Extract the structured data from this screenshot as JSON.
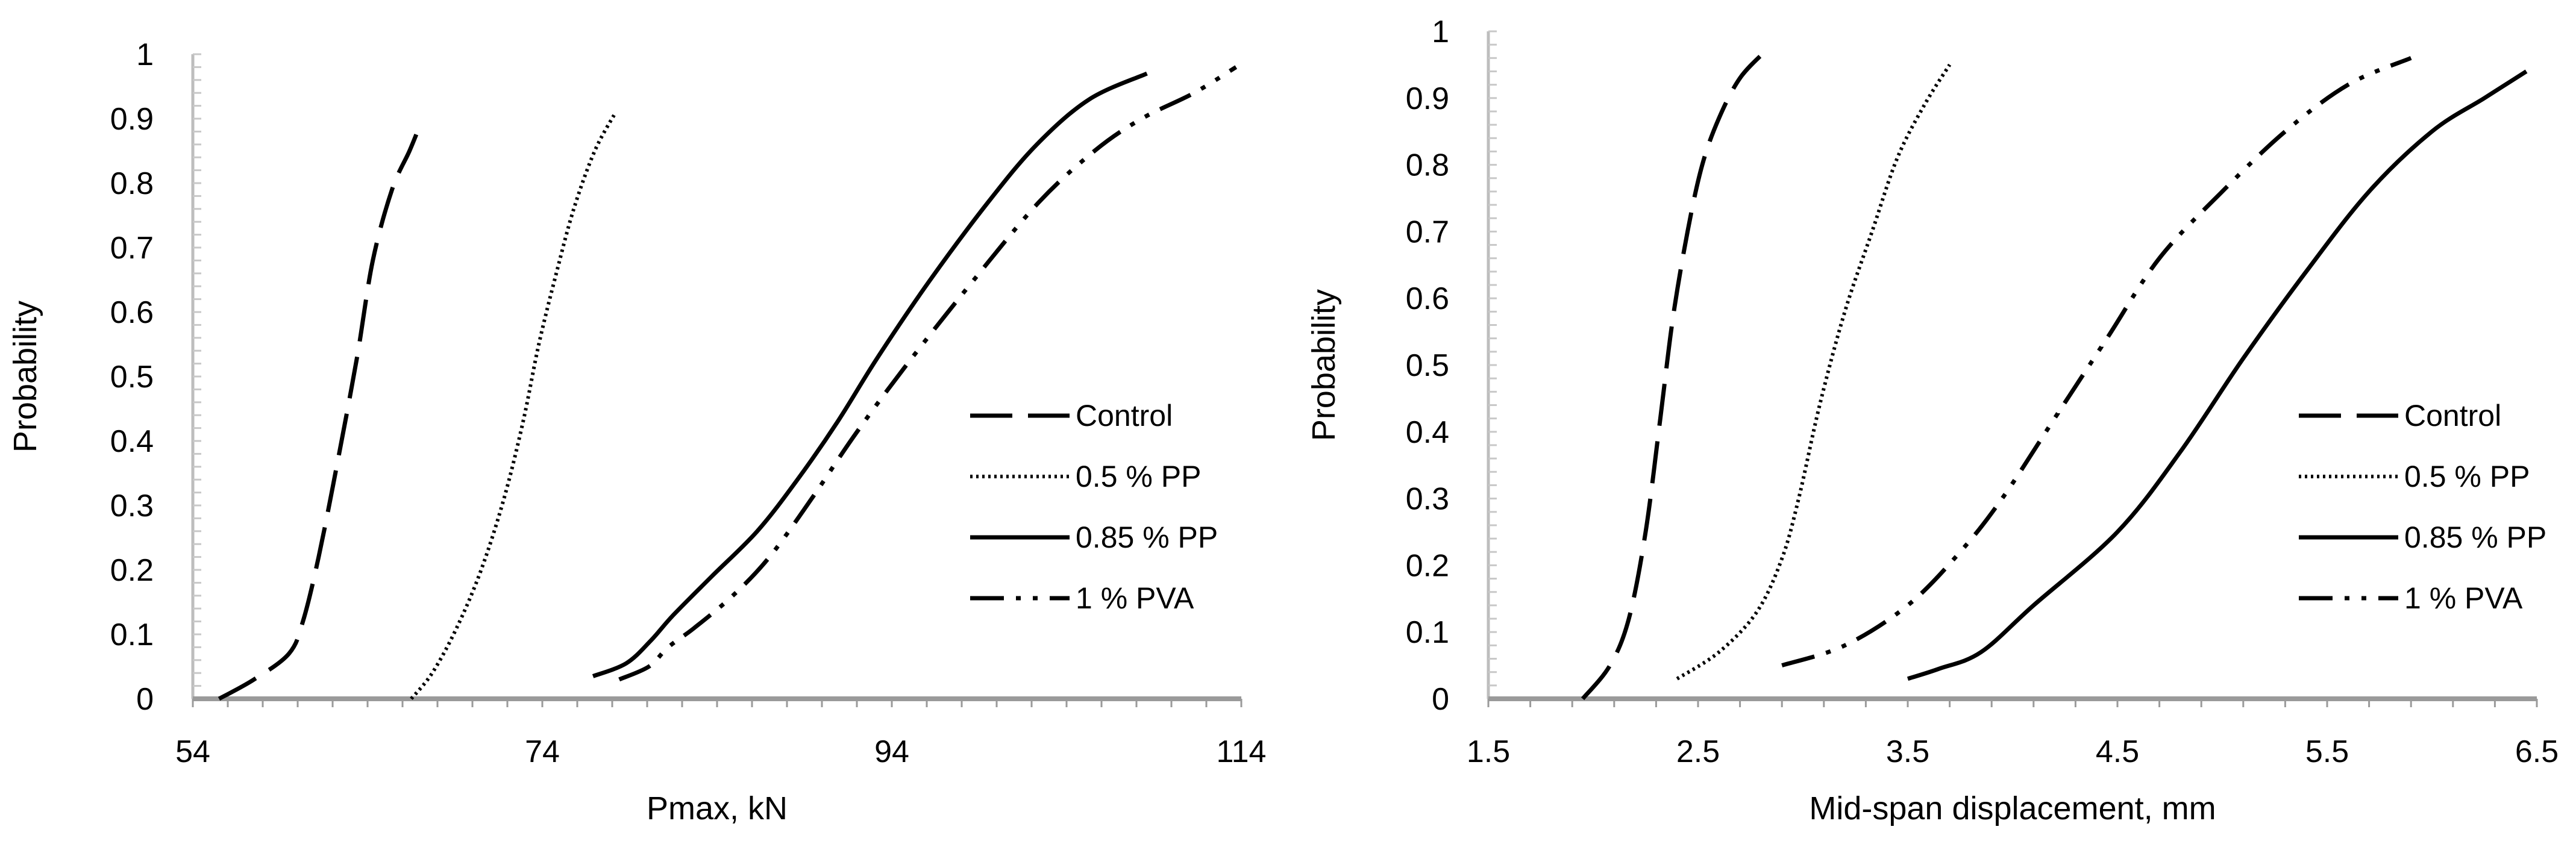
{
  "chart_data": [
    {
      "type": "line",
      "xlabel": "Pmax, kN",
      "ylabel": "Probability",
      "xlim": [
        54,
        114
      ],
      "ylim": [
        0,
        1
      ],
      "x_ticks": [
        "54",
        "74",
        "94",
        "114"
      ],
      "y_ticks": [
        "0",
        "0.1",
        "0.2",
        "0.3",
        "0.4",
        "0.5",
        "0.6",
        "0.7",
        "0.8",
        "0.9",
        "1"
      ],
      "grid": false,
      "legend_position": "right",
      "series": [
        {
          "name": "Control",
          "style": "long-dash",
          "x": [
            55.5,
            57.5,
            59.5,
            60.3,
            61.2,
            62.3,
            63.4,
            64.3,
            65.4,
            66.4,
            67.0
          ],
          "y": [
            0.0,
            0.03,
            0.07,
            0.12,
            0.22,
            0.37,
            0.53,
            0.68,
            0.79,
            0.85,
            0.89
          ]
        },
        {
          "name": "0.5 % PP",
          "style": "dotted",
          "x": [
            66.5,
            67.7,
            69.1,
            70.5,
            71.8,
            72.9,
            73.8,
            74.8,
            75.8,
            77.0,
            78.2
          ],
          "y": [
            0.0,
            0.04,
            0.11,
            0.2,
            0.31,
            0.43,
            0.55,
            0.66,
            0.76,
            0.85,
            0.91
          ]
        },
        {
          "name": "0.85 % PP",
          "style": "solid",
          "x": [
            76.9,
            78.8,
            80.2,
            81.5,
            83.7,
            86.3,
            88.6,
            90.9,
            93.2,
            96.2,
            99.5,
            102.3,
            105.3,
            108.6
          ],
          "y": [
            0.035,
            0.055,
            0.09,
            0.13,
            0.19,
            0.26,
            0.34,
            0.43,
            0.53,
            0.65,
            0.77,
            0.86,
            0.93,
            0.97
          ]
        },
        {
          "name": "1 % PVA",
          "style": "dash-dot-dot",
          "x": [
            78.4,
            80.1,
            81.2,
            82.7,
            84.9,
            87.0,
            89.4,
            91.9,
            94.9,
            98.7,
            102.4,
            105.6,
            108.3,
            111.3,
            113.7
          ],
          "y": [
            0.03,
            0.05,
            0.08,
            0.11,
            0.16,
            0.22,
            0.31,
            0.41,
            0.52,
            0.65,
            0.77,
            0.85,
            0.9,
            0.94,
            0.98
          ]
        }
      ],
      "legend_entries": [
        "Control",
        "0.5 % PP",
        "0.85 % PP",
        "1 % PVA"
      ]
    },
    {
      "type": "line",
      "xlabel": "Mid-span displacement, mm",
      "ylabel": "Probability",
      "xlim": [
        1.5,
        6.5
      ],
      "ylim": [
        0,
        1
      ],
      "x_ticks": [
        "1.5",
        "2.5",
        "3.5",
        "4.5",
        "5.5",
        "6.5"
      ],
      "y_ticks": [
        "0",
        "0.1",
        "0.2",
        "0.3",
        "0.4",
        "0.5",
        "0.6",
        "0.7",
        "0.8",
        "0.9",
        "1"
      ],
      "grid": false,
      "legend_position": "right",
      "series": [
        {
          "name": "Control",
          "style": "long-dash",
          "x": [
            1.95,
            2.08,
            2.17,
            2.25,
            2.32,
            2.38,
            2.45,
            2.52,
            2.6,
            2.7,
            2.82
          ],
          "y": [
            0.0,
            0.05,
            0.12,
            0.25,
            0.42,
            0.57,
            0.7,
            0.8,
            0.87,
            0.93,
            0.97
          ]
        },
        {
          "name": "0.5 % PP",
          "style": "dotted",
          "x": [
            2.4,
            2.6,
            2.78,
            2.9,
            2.98,
            3.08,
            3.2,
            3.33,
            3.45,
            3.58,
            3.7
          ],
          "y": [
            0.03,
            0.07,
            0.13,
            0.21,
            0.3,
            0.44,
            0.58,
            0.7,
            0.81,
            0.89,
            0.95
          ]
        },
        {
          "name": "0.85 % PP",
          "style": "solid",
          "x": [
            3.5,
            3.65,
            3.85,
            4.1,
            4.5,
            4.8,
            5.1,
            5.4,
            5.7,
            6.0,
            6.25,
            6.45
          ],
          "y": [
            0.03,
            0.045,
            0.07,
            0.14,
            0.25,
            0.37,
            0.51,
            0.64,
            0.76,
            0.85,
            0.9,
            0.94
          ]
        },
        {
          "name": "1 % PVA",
          "style": "dash-dot-dot",
          "x": [
            2.9,
            3.2,
            3.5,
            3.75,
            3.95,
            4.2,
            4.45,
            4.7,
            5.0,
            5.3,
            5.6,
            5.9
          ],
          "y": [
            0.05,
            0.08,
            0.14,
            0.22,
            0.3,
            0.42,
            0.54,
            0.66,
            0.76,
            0.85,
            0.92,
            0.96
          ]
        }
      ],
      "legend_entries": [
        "Control",
        "0.5 % PP",
        "0.85 % PP",
        "1 % PVA"
      ]
    }
  ]
}
